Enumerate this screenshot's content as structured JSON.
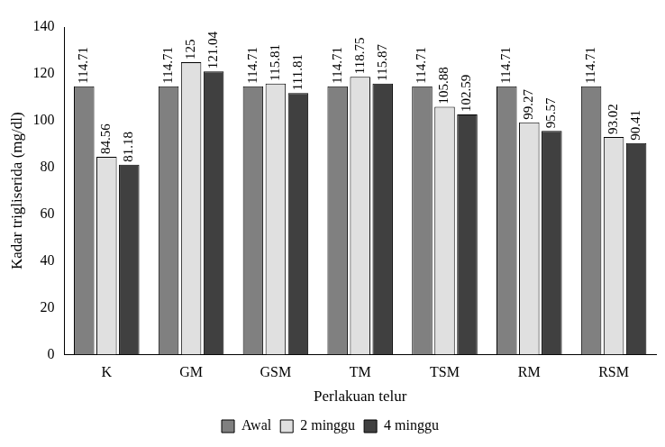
{
  "chart_data": {
    "type": "bar",
    "x_label": "Perlakuan telur",
    "y_label": "Kadar trigliserida (mg/dl)",
    "categories": [
      "K",
      "GM",
      "GSM",
      "TM",
      "TSM",
      "RM",
      "RSM"
    ],
    "series": [
      {
        "name": "Awal",
        "color": "#808080",
        "values": [
          114.71,
          114.71,
          114.71,
          114.71,
          114.71,
          114.71,
          114.71
        ]
      },
      {
        "name": "2 minggu",
        "color": "#e0e0e0",
        "values": [
          84.56,
          125,
          115.81,
          118.75,
          105.88,
          99.27,
          93.02
        ]
      },
      {
        "name": "4 minggu",
        "color": "#404040",
        "values": [
          81.18,
          121.04,
          111.81,
          115.87,
          102.59,
          95.57,
          90.41
        ]
      }
    ],
    "ylim": [
      0,
      140
    ],
    "yticks": [
      0,
      20,
      40,
      60,
      80,
      100,
      120,
      140
    ],
    "grid": false,
    "legend": "bottom",
    "data_labels": true
  }
}
